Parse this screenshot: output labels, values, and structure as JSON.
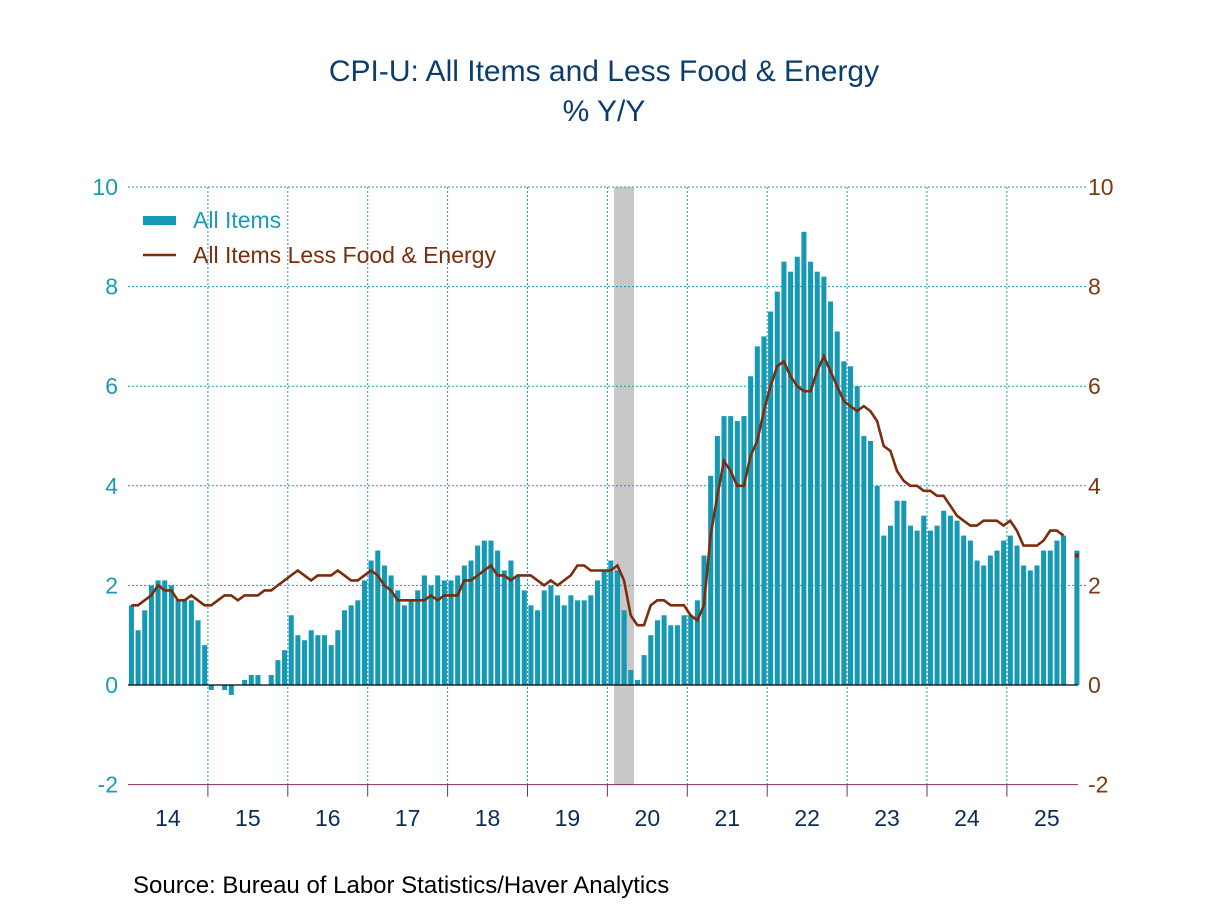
{
  "chart_data": {
    "type": "bar+line",
    "title": "CPI-U: All Items and Less Food & Energy",
    "subtitle": "% Y/Y",
    "source": "Source:  Bureau of Labor Statistics/Haver Analytics",
    "ylim": [
      -2,
      10
    ],
    "yticks": [
      -2,
      0,
      2,
      4,
      6,
      8,
      10
    ],
    "x_tick_labels": [
      "14",
      "15",
      "16",
      "17",
      "18",
      "19",
      "20",
      "21",
      "22",
      "23",
      "24",
      "25"
    ],
    "start": "2014-01",
    "recession": [
      "2020-02",
      "2020-04"
    ],
    "legend_position": "top-left",
    "grid": true,
    "series": [
      {
        "name": "All Items",
        "type": "bar",
        "axis": "left",
        "color": "#1699b4",
        "values": [
          1.6,
          1.1,
          1.5,
          2.0,
          2.1,
          2.1,
          2.0,
          1.7,
          1.7,
          1.7,
          1.3,
          0.8,
          -0.1,
          0.0,
          -0.1,
          -0.2,
          0.0,
          0.1,
          0.2,
          0.2,
          0.0,
          0.2,
          0.5,
          0.7,
          1.4,
          1.0,
          0.9,
          1.1,
          1.0,
          1.0,
          0.8,
          1.1,
          1.5,
          1.6,
          1.7,
          2.1,
          2.5,
          2.7,
          2.4,
          2.2,
          1.9,
          1.6,
          1.7,
          1.9,
          2.2,
          2.0,
          2.2,
          2.1,
          2.1,
          2.2,
          2.4,
          2.5,
          2.8,
          2.9,
          2.9,
          2.7,
          2.3,
          2.5,
          2.2,
          1.9,
          1.6,
          1.5,
          1.9,
          2.0,
          1.8,
          1.6,
          1.8,
          1.7,
          1.7,
          1.8,
          2.1,
          2.3,
          2.5,
          2.3,
          1.5,
          0.3,
          0.1,
          0.6,
          1.0,
          1.3,
          1.4,
          1.2,
          1.2,
          1.4,
          1.4,
          1.7,
          2.6,
          4.2,
          5.0,
          5.4,
          5.4,
          5.3,
          5.4,
          6.2,
          6.8,
          7.0,
          7.5,
          7.9,
          8.5,
          8.3,
          8.6,
          9.1,
          8.5,
          8.3,
          8.2,
          7.7,
          7.1,
          6.5,
          6.4,
          6.0,
          5.0,
          4.9,
          4.0,
          3.0,
          3.2,
          3.7,
          3.7,
          3.2,
          3.1,
          3.4,
          3.1,
          3.2,
          3.5,
          3.4,
          3.3,
          3.0,
          2.9,
          2.5,
          2.4,
          2.6,
          2.7,
          2.9,
          3.0,
          2.8,
          2.4,
          2.3,
          2.4,
          2.7,
          2.7,
          2.9,
          3.0,
          null,
          2.7
        ]
      },
      {
        "name": "All Items Less Food & Energy",
        "type": "line",
        "axis": "right",
        "color": "#7b2d0c",
        "values": [
          1.6,
          1.6,
          1.7,
          1.8,
          2.0,
          1.9,
          1.9,
          1.7,
          1.7,
          1.8,
          1.7,
          1.6,
          1.6,
          1.7,
          1.8,
          1.8,
          1.7,
          1.8,
          1.8,
          1.8,
          1.9,
          1.9,
          2.0,
          2.1,
          2.2,
          2.3,
          2.2,
          2.1,
          2.2,
          2.2,
          2.2,
          2.3,
          2.2,
          2.1,
          2.1,
          2.2,
          2.3,
          2.2,
          2.0,
          1.9,
          1.7,
          1.7,
          1.7,
          1.7,
          1.7,
          1.8,
          1.7,
          1.8,
          1.8,
          1.8,
          2.1,
          2.1,
          2.2,
          2.3,
          2.4,
          2.2,
          2.2,
          2.1,
          2.2,
          2.2,
          2.2,
          2.1,
          2.0,
          2.1,
          2.0,
          2.1,
          2.2,
          2.4,
          2.4,
          2.3,
          2.3,
          2.3,
          2.3,
          2.4,
          2.1,
          1.4,
          1.2,
          1.2,
          1.6,
          1.7,
          1.7,
          1.6,
          1.6,
          1.6,
          1.4,
          1.3,
          1.6,
          3.0,
          3.8,
          4.5,
          4.3,
          4.0,
          4.0,
          4.6,
          4.9,
          5.5,
          6.0,
          6.4,
          6.5,
          6.2,
          6.0,
          5.9,
          5.9,
          6.3,
          6.6,
          6.3,
          6.0,
          5.7,
          5.6,
          5.5,
          5.6,
          5.5,
          5.3,
          4.8,
          4.7,
          4.3,
          4.1,
          4.0,
          4.0,
          3.9,
          3.9,
          3.8,
          3.8,
          3.6,
          3.4,
          3.3,
          3.2,
          3.2,
          3.3,
          3.3,
          3.3,
          3.2,
          3.3,
          3.1,
          2.8,
          2.8,
          2.8,
          2.9,
          3.1,
          3.1,
          3.0,
          null,
          2.6
        ]
      }
    ]
  }
}
